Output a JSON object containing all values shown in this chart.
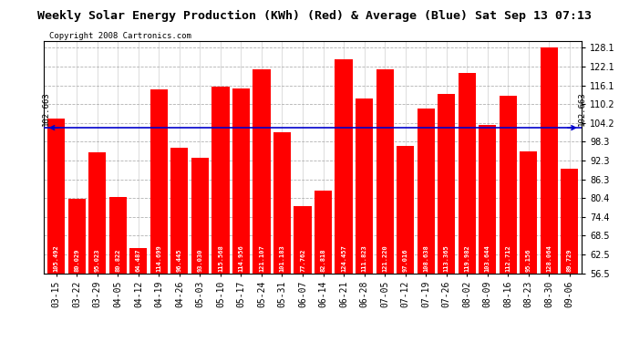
{
  "title": "Weekly Solar Energy Production (KWh) (Red) & Average (Blue) Sat Sep 13 07:13",
  "copyright": "Copyright 2008 Cartronics.com",
  "average_label": "102.663",
  "average_value": 102.663,
  "bar_color": "#FF0000",
  "avg_line_color": "#0000CC",
  "background_color": "#FFFFFF",
  "plot_bg_color": "#FFFFFF",
  "grid_color": "#AAAAAA",
  "categories": [
    "03-15",
    "03-22",
    "03-29",
    "04-05",
    "04-12",
    "04-19",
    "04-26",
    "05-03",
    "05-10",
    "05-17",
    "05-24",
    "05-31",
    "06-07",
    "06-14",
    "06-21",
    "06-28",
    "07-05",
    "07-12",
    "07-19",
    "07-26",
    "08-02",
    "08-09",
    "08-16",
    "08-23",
    "08-30",
    "09-06"
  ],
  "values": [
    105.492,
    80.029,
    95.023,
    80.822,
    64.487,
    114.699,
    96.445,
    93.03,
    115.568,
    114.956,
    121.107,
    101.183,
    77.762,
    82.818,
    124.457,
    111.823,
    121.22,
    97.016,
    108.638,
    113.365,
    119.982,
    103.644,
    112.712,
    95.156,
    128.064,
    89.729
  ],
  "ylim_min": 56.5,
  "ylim_max": 130.1,
  "yticks": [
    56.5,
    62.5,
    68.5,
    74.4,
    80.4,
    86.3,
    92.3,
    98.3,
    104.2,
    110.2,
    116.1,
    122.1,
    128.1
  ],
  "title_fontsize": 9.5,
  "copyright_fontsize": 6.5,
  "tick_fontsize": 7,
  "bar_value_fontsize": 5.0,
  "avg_fontsize": 6.5
}
